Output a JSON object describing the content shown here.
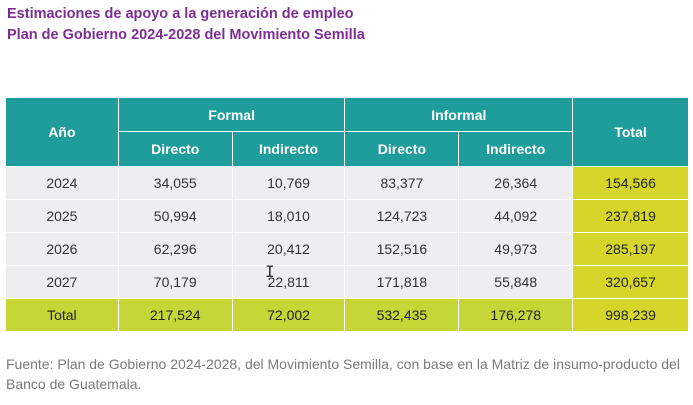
{
  "title": {
    "line1": "Estimaciones de apoyo a la generación de empleo",
    "line2": "Plan de Gobierno 2024-2028 del Movimiento Semilla"
  },
  "table": {
    "header": {
      "year": "Año",
      "formal": "Formal",
      "informal": "Informal",
      "total": "Total",
      "direct": "Directo",
      "indirect": "Indirecto"
    },
    "rows": [
      {
        "year": "2024",
        "formal_direct": "34,055",
        "formal_indirect": "10,769",
        "informal_direct": "83,377",
        "informal_indirect": "26,364",
        "total": "154,566"
      },
      {
        "year": "2025",
        "formal_direct": "50,994",
        "formal_indirect": "18,010",
        "informal_direct": "124,723",
        "informal_indirect": "44,092",
        "total": "237,819"
      },
      {
        "year": "2026",
        "formal_direct": "62,296",
        "formal_indirect": "20,412",
        "informal_direct": "152,516",
        "informal_indirect": "49,973",
        "total": "285,197"
      },
      {
        "year": "2027",
        "formal_direct": "70,179",
        "formal_indirect": "22,811",
        "informal_direct": "171,818",
        "informal_indirect": "55,848",
        "total": "320,657"
      }
    ],
    "totals": {
      "label": "Total",
      "formal_direct": "217,524",
      "formal_indirect": "72,002",
      "informal_direct": "532,435",
      "informal_indirect": "176,278",
      "total": "998,239"
    }
  },
  "source": "Fuente: Plan de Gobierno 2024-2028, del Movimiento Semilla, con base en la Matriz de insumo-producto del Banco de Guatemala.",
  "colors": {
    "title": "#7d2d95",
    "header": "#1f9c9c",
    "total_column": "#d6d62a",
    "total_row": "#c6d636",
    "body_cell": "#eeeef0"
  }
}
